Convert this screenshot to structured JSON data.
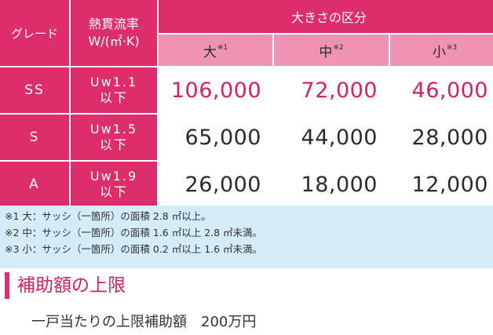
{
  "table": {
    "header": {
      "grade": "グレード",
      "u_line1": "熱貫流率",
      "u_line2": "W/(㎡·K)",
      "size_group": "大きさの区分",
      "sizes": [
        {
          "label": "大",
          "note": "※1"
        },
        {
          "label": "中",
          "note": "※2"
        },
        {
          "label": "小",
          "note": "※3"
        }
      ]
    },
    "rows": [
      {
        "grade": "SS",
        "u_value": "Uw1.1",
        "u_suffix": "以下",
        "values": [
          "106,000",
          "72,000",
          "46,000"
        ]
      },
      {
        "grade": "S",
        "u_value": "Uw1.5",
        "u_suffix": "以下",
        "values": [
          "65,000",
          "44,000",
          "28,000"
        ]
      },
      {
        "grade": "A",
        "u_value": "Uw1.9",
        "u_suffix": "以下",
        "values": [
          "26,000",
          "18,000",
          "12,000"
        ]
      }
    ]
  },
  "notes": [
    "※1 大：サッシ（一箇所）の面積 2.8 ㎡以上。",
    "※2 中：サッシ（一箇所）の面積 1.6 ㎡以上 2.8 ㎡未満。",
    "※3 小：サッシ（一箇所）の面積 0.2 ㎡以上 1.6 ㎡未満。"
  ],
  "subsidy_cap": {
    "title": "補助額の上限",
    "text": "一戸当たりの上限補助額　200万円"
  },
  "colors": {
    "header_magenta": "#dd2d6a",
    "header_pink": "#ef92b3",
    "value_highlight": "#d6225c",
    "value_normal": "#2b2b2b",
    "notes_background": "#d4ecf8"
  }
}
